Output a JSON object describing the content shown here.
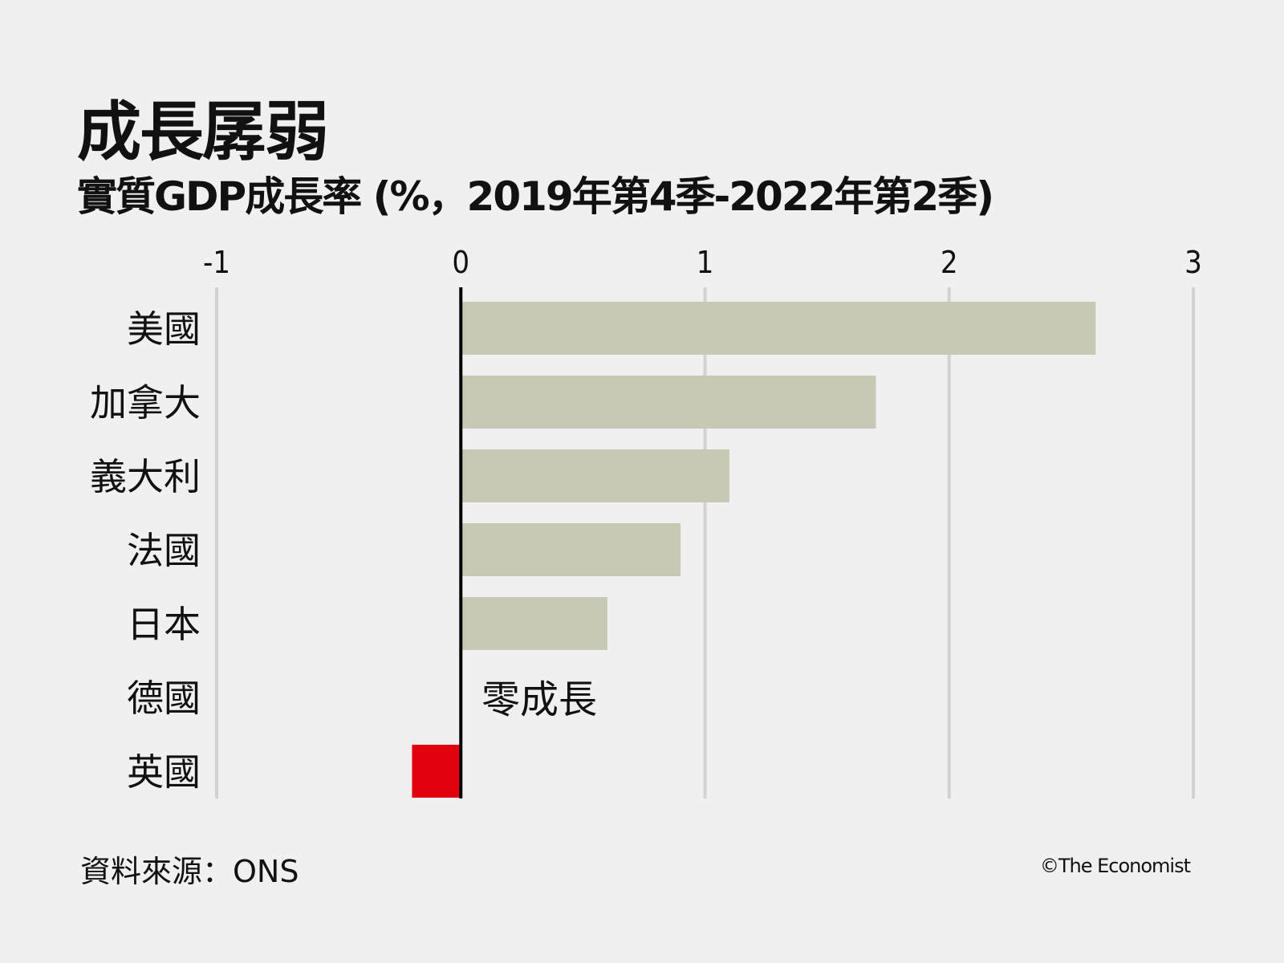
{
  "chart_data": {
    "type": "bar",
    "orientation": "horizontal",
    "title": "成長孱弱",
    "subtitle": "實質GDP成長率 (%，2019年第4季-2022年第2季)",
    "categories": [
      "美國",
      "加拿大",
      "義大利",
      "法國",
      "日本",
      "德國",
      "英國"
    ],
    "values": [
      2.6,
      1.7,
      1.1,
      0.9,
      0.6,
      0.0,
      -0.2
    ],
    "xlim": [
      -1,
      3
    ],
    "xticks": [
      "-1",
      "0",
      "1",
      "2",
      "3"
    ],
    "grid": true,
    "annotation": "零成長",
    "colors": {
      "positive": "#c8c9b4",
      "negative": "#e3000f",
      "zero_line": "#000000",
      "grid": "#d2d2d2"
    }
  },
  "footer": {
    "source": "資料來源：ONS",
    "credit": "©The Economist"
  }
}
